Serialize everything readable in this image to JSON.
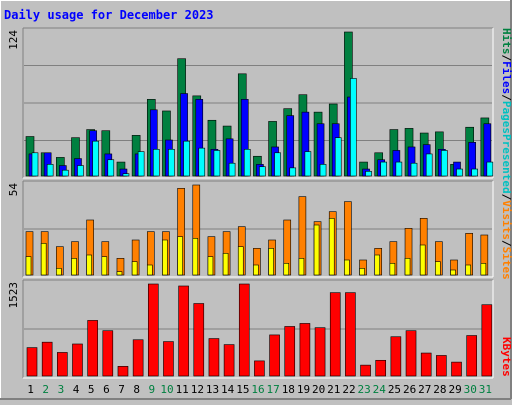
{
  "chart_data": {
    "type": "bar",
    "title": "Daily usage for December 2023",
    "days": [
      "1",
      "2",
      "3",
      "4",
      "5",
      "6",
      "7",
      "8",
      "9",
      "10",
      "11",
      "12",
      "13",
      "14",
      "15",
      "16",
      "17",
      "18",
      "19",
      "20",
      "21",
      "22",
      "23",
      "24",
      "25",
      "26",
      "27",
      "28",
      "29",
      "30",
      "31"
    ],
    "weekend_days": [
      "2",
      "3",
      "9",
      "10",
      "16",
      "17",
      "23",
      "24",
      "30",
      "31"
    ],
    "panels": [
      {
        "name": "hits-files-pages",
        "ymax": 124,
        "ymax_label": "124",
        "series": [
          {
            "name": "Hits",
            "color": "#008040",
            "values": [
              34,
              20,
              16,
              33,
              40,
              39,
              12,
              35,
              66,
              56,
              101,
              69,
              48,
              43,
              88,
              17,
              47,
              58,
              70,
              55,
              62,
              124,
              12,
              20,
              40,
              41,
              37,
              38,
              10,
              42,
              50
            ]
          },
          {
            "name": "Files",
            "color": "#0000FF",
            "values": [
              19,
              20,
              9,
              15,
              39,
              19,
              6,
              19,
              57,
              31,
              71,
              66,
              23,
              32,
              66,
              10,
              25,
              52,
              55,
              45,
              45,
              68,
              6,
              14,
              22,
              25,
              27,
              23,
              12,
              29,
              45
            ]
          },
          {
            "name": "Pages",
            "color": "#00FFFF",
            "values": [
              20,
              10,
              5,
              9,
              30,
              14,
              2,
              21,
              23,
              23,
              30,
              24,
              22,
              11,
              23,
              8,
              20,
              7,
              21,
              10,
              33,
              84,
              4,
              12,
              12,
              11,
              19,
              22,
              6,
              6,
              12
            ]
          }
        ]
      },
      {
        "name": "visits-sites",
        "ymax": 54,
        "ymax_label": "54",
        "series": [
          {
            "name": "Visits",
            "color": "#FF8000",
            "values": [
              26,
              26,
              17,
              20,
              33,
              20,
              10,
              21,
              26,
              26,
              52,
              54,
              23,
              26,
              29,
              16,
              21,
              33,
              47,
              32,
              38,
              44,
              9,
              16,
              20,
              28,
              34,
              20,
              9,
              25,
              24
            ]
          },
          {
            "name": "Sites",
            "color": "#FFFF00",
            "values": [
              11,
              19,
              4,
              10,
              12,
              11,
              2,
              8,
              6,
              21,
              23,
              22,
              11,
              13,
              17,
              6,
              16,
              7,
              10,
              30,
              34,
              9,
              4,
              12,
              7,
              10,
              18,
              8,
              3,
              6,
              7
            ]
          }
        ]
      },
      {
        "name": "kbytes",
        "ymax": 1523,
        "ymax_label": "1523",
        "series": [
          {
            "name": "KBytes",
            "color": "#FF0000",
            "values": [
              470,
              560,
              390,
              530,
              920,
              750,
              160,
              600,
              1523,
              570,
              1490,
              1200,
              620,
              520,
              1523,
              250,
              680,
              820,
              870,
              800,
              1380,
              1380,
              180,
              260,
              650,
              750,
              380,
              340,
              230,
              670,
              1180
            ]
          }
        ]
      }
    ],
    "legend": {
      "panel1": [
        "Hits",
        "/",
        "Files",
        "/",
        "Pages",
        "/",
        "Visits",
        "/",
        "Sites"
      ],
      "panel3": "KBytes"
    }
  },
  "right_labels": {
    "top": [
      {
        "text": "Hits",
        "color": "#008040"
      },
      {
        "text": "/",
        "color": "#000000"
      },
      {
        "text": "Files",
        "color": "#0000FF"
      },
      {
        "text": "/",
        "color": "#000000"
      },
      {
        "text": "Pages",
        "color": "#00C0C0"
      },
      {
        "text": "Presented",
        "color": "#00C0C0"
      },
      {
        "text": "/",
        "color": "#000000"
      },
      {
        "text": "Visits",
        "color": "#FF8000"
      },
      {
        "text": "/",
        "color": "#000000"
      },
      {
        "text": "Sites",
        "color": "#FF8000"
      }
    ]
  }
}
